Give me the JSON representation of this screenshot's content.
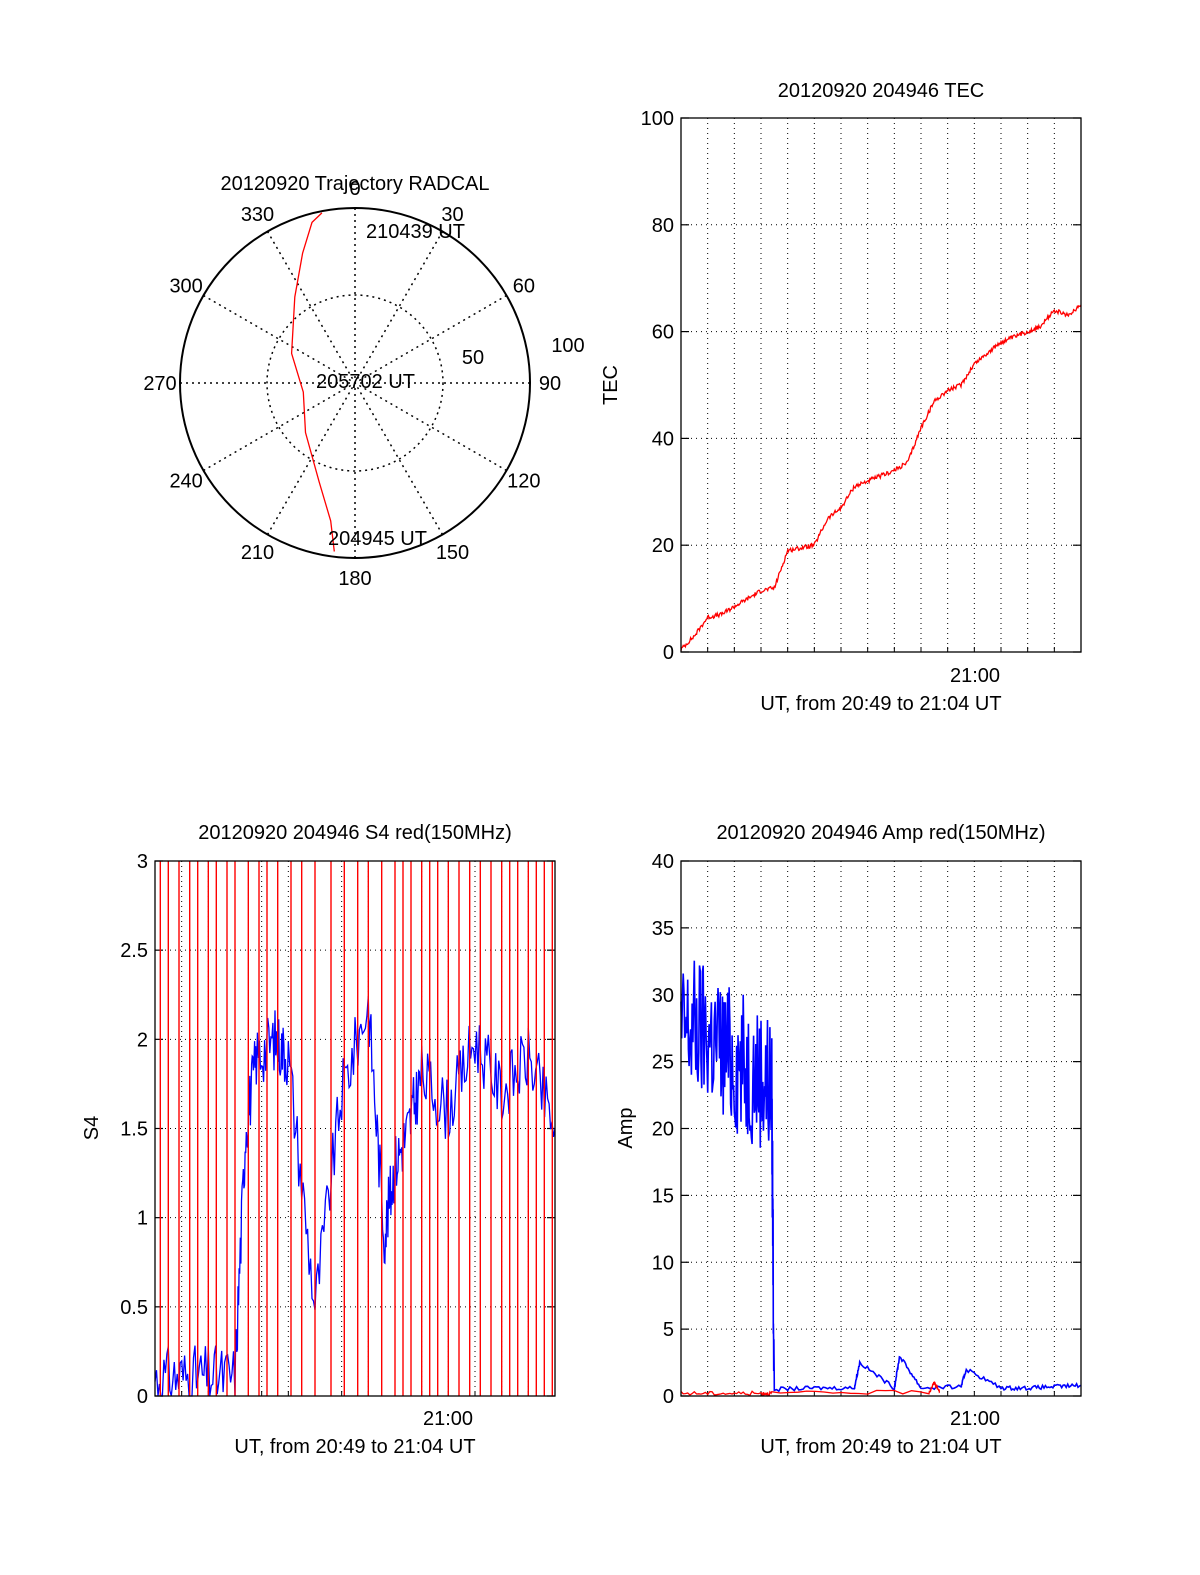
{
  "chart_data": [
    {
      "type": "polar",
      "title": "20120920 Trajectory RADCAL",
      "azimuth_labels": [
        "0",
        "30",
        "60",
        "90",
        "120",
        "150",
        "180",
        "210",
        "240",
        "270",
        "300",
        "330"
      ],
      "radial_labels": [
        "50",
        "100"
      ],
      "rlim": [
        0,
        100
      ],
      "grid": true,
      "series": [
        {
          "color": "#ff0000",
          "points": [
            {
              "az": 187,
              "r": 97
            },
            {
              "az": 190,
              "r": 80
            },
            {
              "az": 200,
              "r": 60
            },
            {
              "az": 225,
              "r": 40
            },
            {
              "az": 260,
              "r": 30
            },
            {
              "az": 295,
              "r": 40
            },
            {
              "az": 325,
              "r": 60
            },
            {
              "az": 338,
              "r": 80
            },
            {
              "az": 345,
              "r": 95
            },
            {
              "az": 349,
              "r": 99
            }
          ]
        }
      ],
      "annotations": [
        "210439 UT",
        "205702 UT",
        "204945 UT"
      ]
    },
    {
      "type": "line",
      "title": "20120920 204946 TEC",
      "xlabel": "UT, from 20:49 to 21:04 UT",
      "ylabel": "TEC",
      "xlim": [
        "20:49",
        "21:04"
      ],
      "ylim": [
        0,
        100
      ],
      "yticks": [
        "0",
        "20",
        "40",
        "60",
        "80",
        "100"
      ],
      "xticks": [
        "21:00"
      ],
      "grid": true,
      "series": [
        {
          "color": "#ff0000",
          "x": [
            "20:49.0",
            "20:49.5",
            "20:50.0",
            "20:50.5",
            "20:51.0",
            "20:51.5",
            "20:52.0",
            "20:52.5",
            "20:53.0",
            "20:53.5",
            "20:54.0",
            "20:54.5",
            "20:55.0",
            "20:55.5",
            "20:56.0",
            "20:56.5",
            "20:57.0",
            "20:57.5",
            "20:58.0",
            "20:58.5",
            "20:59.0",
            "20:59.5",
            "21:00.0",
            "21:00.5",
            "21:01.0",
            "21:01.5",
            "21:02.0",
            "21:02.5",
            "21:03.0",
            "21:03.5",
            "21:04.0"
          ],
          "values": [
            0.5,
            3,
            6.5,
            7,
            8.5,
            10,
            11.5,
            12,
            19,
            19.5,
            20,
            25,
            27,
            31,
            32,
            33,
            34,
            35.5,
            42,
            47,
            49,
            50,
            54,
            56,
            58,
            59,
            60,
            61,
            64,
            63,
            65
          ]
        }
      ]
    },
    {
      "type": "line",
      "title": "20120920 204946 S4 red(150MHz)",
      "xlabel": "UT, from 20:49 to 21:04 UT",
      "ylabel": "S4",
      "xlim": [
        "20:49",
        "21:04"
      ],
      "ylim": [
        0,
        3
      ],
      "yticks": [
        "0",
        "0.5",
        "1",
        "1.5",
        "2",
        "2.5",
        "3"
      ],
      "xticks": [
        "21:00"
      ],
      "grid": true,
      "series": [
        {
          "color": "#0000ff",
          "x": [
            "20:49.0",
            "20:50.0",
            "20:51.0",
            "20:52.0",
            "20:52.4",
            "20:52.8",
            "20:53.5",
            "20:54.0",
            "20:55.0",
            "20:56.0",
            "20:57.0",
            "20:57.6",
            "20:58.0",
            "20:58.5",
            "20:59.0",
            "21:00.0",
            "21:01.0",
            "21:02.0",
            "21:03.0",
            "21:04.0"
          ],
          "values": [
            0.1,
            0.11,
            0.11,
            0.11,
            1.5,
            1.9,
            2.0,
            1.9,
            0.5,
            1.7,
            2.2,
            0.9,
            1.3,
            1.5,
            1.8,
            1.6,
            2.0,
            1.7,
            1.9,
            1.5
          ]
        },
        {
          "color": "#ff0000",
          "style": "spikes",
          "x": [
            "20:49.2",
            "20:49.5",
            "20:49.9",
            "20:50.3",
            "20:50.6",
            "20:51.0",
            "20:51.3",
            "20:51.7",
            "20:52.0",
            "20:52.5",
            "20:52.9",
            "20:53.2",
            "20:53.6",
            "20:54.1",
            "20:54.5",
            "20:55.0",
            "20:55.6",
            "20:56.1",
            "20:56.6",
            "20:57.0",
            "20:57.5",
            "20:58.0",
            "20:58.3",
            "20:58.6",
            "20:59.0",
            "20:59.3",
            "20:59.6",
            "21:00.0",
            "21:00.4",
            "21:00.8",
            "21:01.2",
            "21:01.6",
            "21:02.0",
            "21:02.3",
            "21:02.6",
            "21:03.0",
            "21:03.3",
            "21:03.6",
            "21:03.9"
          ],
          "values": [
            3,
            3,
            3,
            3,
            3,
            3,
            3,
            3,
            3,
            3,
            3,
            3,
            3,
            3,
            3,
            3,
            3,
            3,
            3,
            3,
            3,
            3,
            3,
            3,
            3,
            3,
            3,
            3,
            3,
            3,
            3,
            3,
            3,
            3,
            3,
            3,
            3,
            3,
            3
          ]
        }
      ]
    },
    {
      "type": "line",
      "title": "20120920 204946 Amp red(150MHz)",
      "xlabel": "UT, from 20:49 to 21:04 UT",
      "ylabel": "Amp",
      "xlim": [
        "20:49",
        "21:04"
      ],
      "ylim": [
        0,
        40
      ],
      "yticks": [
        "0",
        "5",
        "10",
        "15",
        "20",
        "25",
        "30",
        "35",
        "40"
      ],
      "xticks": [
        "21:00"
      ],
      "grid": true,
      "series": [
        {
          "color": "#0000ff",
          "x": [
            "20:49.0",
            "20:49.5",
            "20:50.0",
            "20:50.5",
            "20:51.0",
            "20:51.5",
            "20:52.0",
            "20:52.4",
            "20:52.5",
            "20:54.0",
            "20:55.5",
            "20:55.7",
            "20:57.0",
            "20:57.2",
            "20:58.0",
            "20:59.5",
            "20:59.7",
            "21:01.0",
            "21:02.0",
            "21:03.0",
            "21:04.0"
          ],
          "values": [
            27,
            27.5,
            27,
            26,
            25,
            24.5,
            24,
            23,
            0.5,
            0.6,
            0.6,
            2.5,
            0.6,
            3,
            0.6,
            0.7,
            2,
            0.6,
            0.6,
            0.7,
            0.8
          ]
        },
        {
          "color": "#ff0000",
          "x": [
            "20:49.0",
            "20:50.5",
            "20:52.0",
            "20:52.4",
            "20:58.3",
            "20:58.5",
            "20:58.7"
          ],
          "values": [
            0.2,
            0.2,
            0.2,
            0.2,
            0.3,
            1,
            0.3
          ]
        }
      ]
    }
  ]
}
